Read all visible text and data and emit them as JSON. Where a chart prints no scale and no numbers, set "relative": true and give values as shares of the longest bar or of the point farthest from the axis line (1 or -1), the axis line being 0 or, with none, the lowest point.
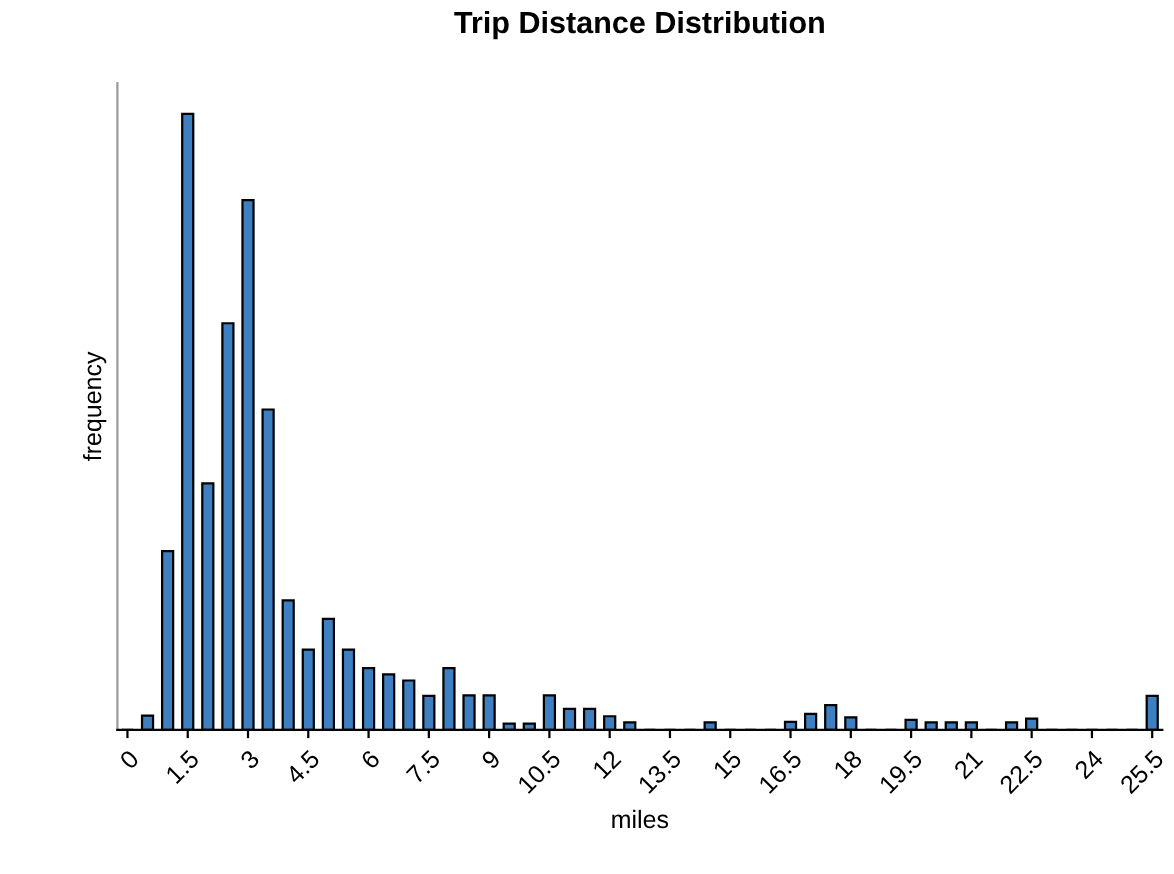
{
  "chart_data": {
    "type": "bar",
    "title": "Trip Distance Distribution",
    "xlabel": "miles",
    "ylabel": "frequency",
    "relative": true,
    "color": "#3d7fc0",
    "categories": [
      "0",
      null,
      null,
      "1.5",
      null,
      null,
      "3",
      null,
      null,
      "4.5",
      null,
      null,
      "6",
      null,
      null,
      "7.5",
      null,
      null,
      "9",
      null,
      null,
      "10.5",
      null,
      null,
      "12",
      null,
      null,
      "13.5",
      null,
      null,
      "15",
      null,
      null,
      "16.5",
      null,
      null,
      "18",
      null,
      null,
      "19.5",
      null,
      null,
      "21",
      null,
      null,
      "22.5",
      null,
      null,
      "24",
      null,
      null,
      "25.5"
    ],
    "values": [
      0,
      0.023,
      0.29,
      1,
      0.4,
      0.66,
      0.86,
      0.52,
      0.21,
      0.13,
      0.18,
      0.13,
      0.1,
      0.09,
      0.08,
      0.055,
      0.1,
      0.056,
      0.056,
      0.01,
      0.01,
      0.056,
      0.034,
      0.034,
      0.022,
      0.012,
      0,
      0,
      0,
      0.012,
      0,
      0,
      0,
      0.013,
      0.026,
      0.04,
      0.02,
      0,
      0,
      0.016,
      0.012,
      0.012,
      0.012,
      0,
      0.012,
      0.018,
      0,
      0,
      0,
      0,
      0,
      0.055
    ],
    "grid": false,
    "legend": false
  }
}
